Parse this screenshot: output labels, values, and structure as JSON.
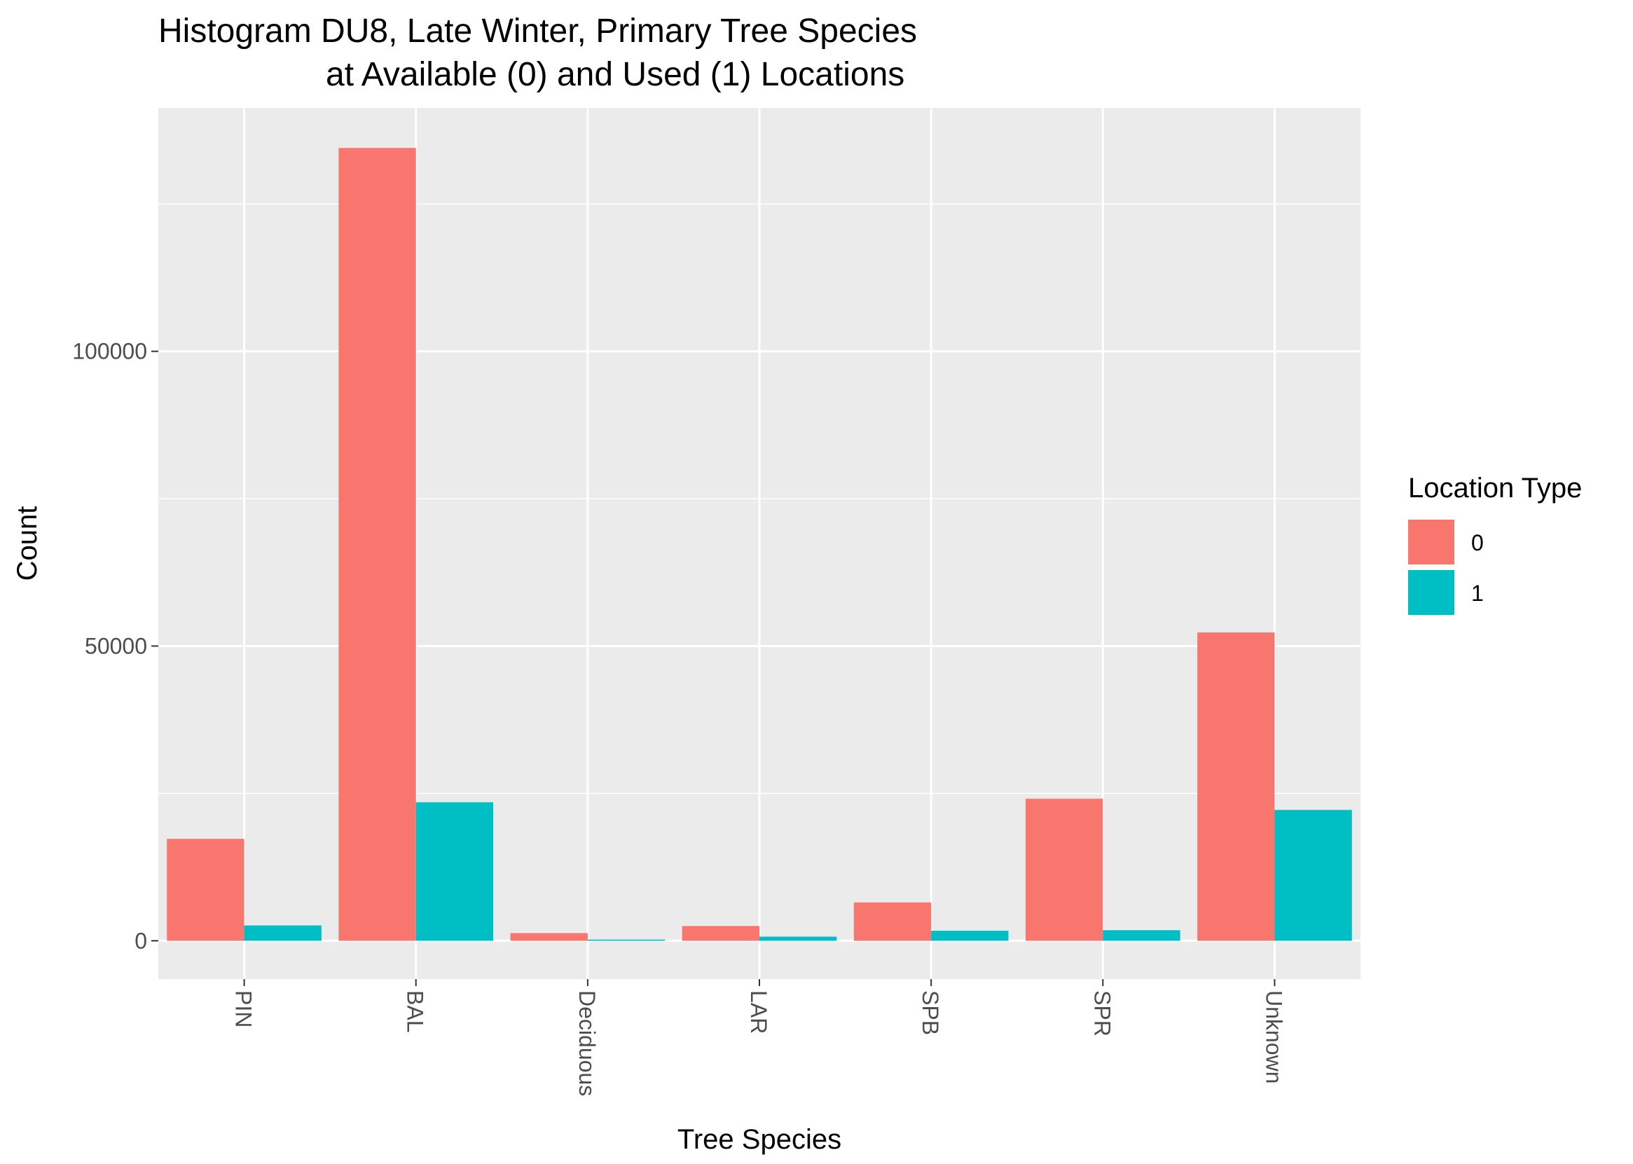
{
  "chart_data": {
    "type": "bar",
    "title": [
      "Histogram DU8, Late Winter, Primary Tree Species",
      "at Available (0) and Used (1) Locations"
    ],
    "xlabel": "Tree Species",
    "ylabel": "Count",
    "categories": [
      "PIN",
      "BAL",
      "Deciduous",
      "LAR",
      "SPB",
      "SPR",
      "Unknown"
    ],
    "series": [
      {
        "name": "0",
        "color": "#F8766D",
        "values": [
          17300,
          134500,
          1300,
          2500,
          6500,
          24100,
          52300
        ]
      },
      {
        "name": "1",
        "color": "#00BFC4",
        "values": [
          2600,
          23500,
          200,
          700,
          1700,
          1800,
          22200
        ]
      }
    ],
    "ylim": [
      -6500,
      141300
    ],
    "yticks": [
      0,
      50000,
      100000
    ],
    "ytick_labels": [
      "0",
      "50000",
      "100000"
    ],
    "grid": true,
    "x_tick_rotation": 90,
    "legend": {
      "title": "Location Type",
      "position": "right",
      "labels": [
        "0",
        "1"
      ]
    },
    "panel_color": "#EBEBEB",
    "grid_color": "#FFFFFF"
  }
}
